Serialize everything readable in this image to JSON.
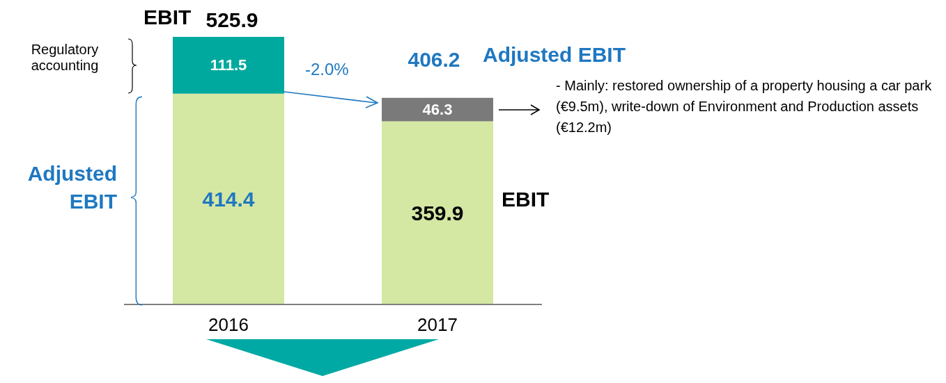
{
  "chart_data": {
    "type": "bar",
    "stacked": true,
    "categories": [
      "2016",
      "2017"
    ],
    "series": [
      {
        "color": "#d4e7a3",
        "values": [
          414.4,
          359.9
        ]
      },
      {
        "colors": [
          "#00a99d",
          "#7a7a7a"
        ],
        "values": [
          111.5,
          46.3
        ]
      }
    ],
    "data_labels": true,
    "totals": [
      "525.9",
      "406.2"
    ],
    "tick_labels": "x",
    "annotations": [
      "EBIT",
      "Regulatory accounting",
      "Adjusted EBIT",
      "-2.0%",
      "Adjusted EBIT",
      "EBIT",
      "- Mainly: restored ownership of a property housing a car park (€9.5m), write-down of Environment and Production assets (€12.2m)"
    ]
  }
}
